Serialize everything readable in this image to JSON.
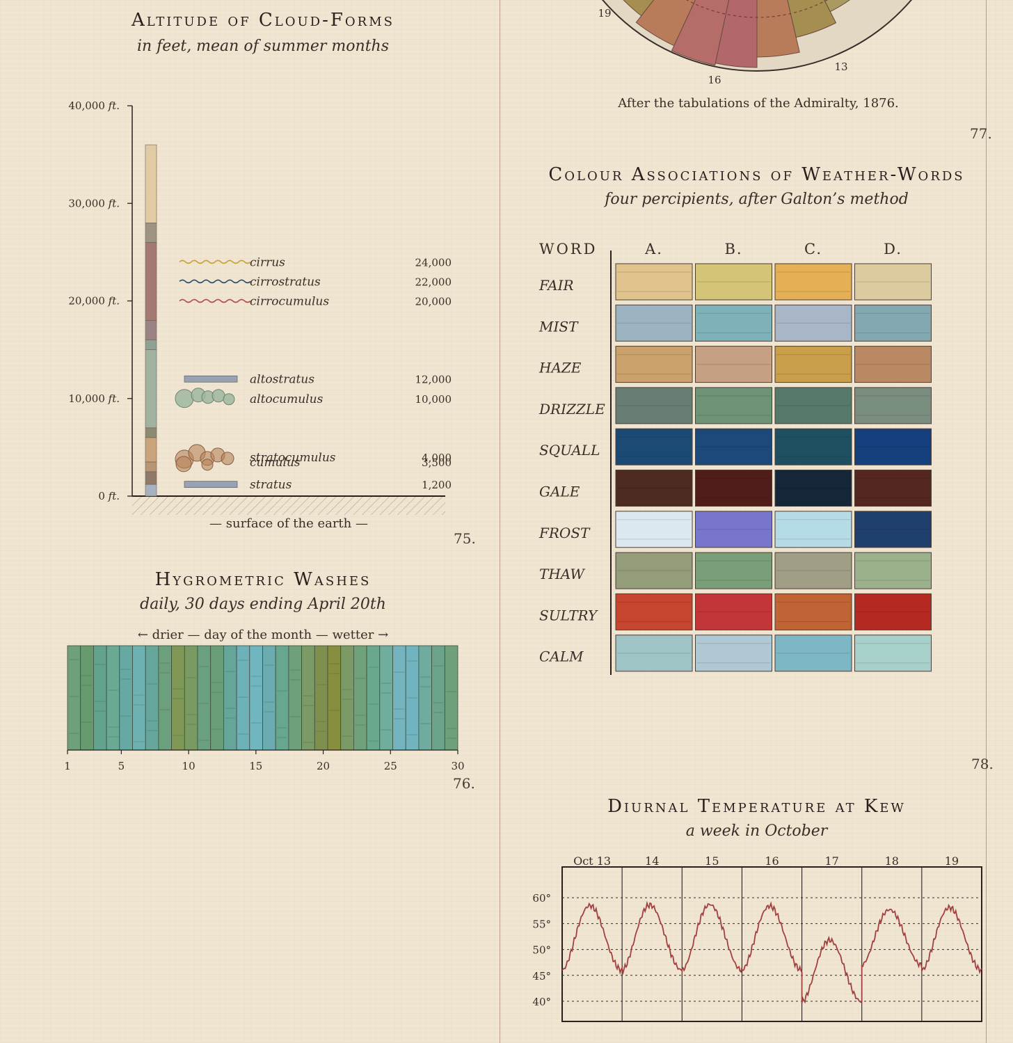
{
  "rose": {
    "spoke_labels": [
      "19",
      "16",
      "13"
    ],
    "caption": "After the tabulations of the Admiralty, 1876.",
    "page_number": "77."
  },
  "clouds": {
    "title": "Altitude of Cloud-Forms",
    "subtitle": "in feet, mean of summer months",
    "surface_label": "— surface of the earth —",
    "page_number": "75.",
    "chart_data": {
      "type": "bar",
      "ylabel_unit": "ft.",
      "ylim": [
        0,
        40000
      ],
      "yticks": [
        {
          "value": 0,
          "label": "0"
        },
        {
          "value": 10000,
          "label": "10,000"
        },
        {
          "value": 20000,
          "label": "20,000"
        },
        {
          "value": 30000,
          "label": "30,000"
        },
        {
          "value": 40000,
          "label": "40,000"
        }
      ],
      "column_segments": [
        {
          "from": 0,
          "to": 1200,
          "color": "#a7b2c0"
        },
        {
          "from": 1200,
          "to": 2500,
          "color": "#8f7a6a"
        },
        {
          "from": 2500,
          "to": 3500,
          "color": "#b89573"
        },
        {
          "from": 3500,
          "to": 6000,
          "color": "#c9a379"
        },
        {
          "from": 6000,
          "to": 7000,
          "color": "#8c8a6f"
        },
        {
          "from": 7000,
          "to": 15000,
          "color": "#a1b2a0"
        },
        {
          "from": 15000,
          "to": 16000,
          "color": "#8ea293"
        },
        {
          "from": 16000,
          "to": 18000,
          "color": "#9b8384"
        },
        {
          "from": 18000,
          "to": 26000,
          "color": "#a47873"
        },
        {
          "from": 26000,
          "to": 28000,
          "color": "#9e9483"
        },
        {
          "from": 28000,
          "to": 36000,
          "color": "#e0cba4"
        }
      ],
      "forms": [
        {
          "name": "cirrus",
          "value": 24000,
          "label": "24,000",
          "glyph": "wave",
          "color": "#c8a13a"
        },
        {
          "name": "cirrostratus",
          "value": 22000,
          "label": "22,000",
          "glyph": "wave",
          "color": "#2c4a66"
        },
        {
          "name": "cirrocumulus",
          "value": 20000,
          "label": "20,000",
          "glyph": "wave",
          "color": "#b1524f"
        },
        {
          "name": "altostratus",
          "value": 12000,
          "label": "12,000",
          "glyph": "bar",
          "color": "#98a2b0"
        },
        {
          "name": "altocumulus",
          "value": 10000,
          "label": "10,000",
          "glyph": "bubbles-green",
          "color": "#9fb7a0"
        },
        {
          "name": "stratocumulus",
          "value": 4000,
          "label": "4,000",
          "glyph": "bubbles-brown",
          "color": "#b8845a"
        },
        {
          "name": "cumulus",
          "value": 3500,
          "label": "3,500",
          "glyph": "none",
          "color": "#b8845a"
        },
        {
          "name": "stratus",
          "value": 1200,
          "label": "1,200",
          "glyph": "bar",
          "color": "#98a2b0"
        }
      ]
    }
  },
  "hygro": {
    "title": "Hygrometric Washes",
    "subtitle": "daily, 30 days ending April 20th",
    "axis_caption": "← drier — day of the month — wetter →",
    "page_number": "76.",
    "chart_data": {
      "type": "bar",
      "x": [
        1,
        2,
        3,
        4,
        5,
        6,
        7,
        8,
        9,
        10,
        11,
        12,
        13,
        14,
        15,
        16,
        17,
        18,
        19,
        20,
        21,
        22,
        23,
        24,
        25,
        26,
        27,
        28,
        29,
        30
      ],
      "wash_colors": [
        "#6fa07c",
        "#689a70",
        "#62a38f",
        "#6aa993",
        "#64aaa3",
        "#6db1b2",
        "#67a79b",
        "#6c9f7b",
        "#7f9855",
        "#7a9a63",
        "#69a180",
        "#6a9e79",
        "#66a69a",
        "#6fb1b9",
        "#6fb6c1",
        "#6bacb0",
        "#66a790",
        "#6fa07c",
        "#7c9a66",
        "#7f8f4e",
        "#878e3e",
        "#7c9a66",
        "#6fa27a",
        "#6aa88e",
        "#6fad9d",
        "#74b4bf",
        "#71b4c0",
        "#6fab9e",
        "#6ba38b",
        "#6ea07b"
      ],
      "xticks": [
        {
          "value": 1,
          "label": "1"
        },
        {
          "value": 5,
          "label": "5"
        },
        {
          "value": 10,
          "label": "10"
        },
        {
          "value": 15,
          "label": "15"
        },
        {
          "value": 20,
          "label": "20"
        },
        {
          "value": 25,
          "label": "25"
        },
        {
          "value": 30,
          "label": "30"
        }
      ]
    }
  },
  "colour": {
    "title": "Colour Associations of Weather-Words",
    "subtitle": "four percipients, after Galton’s method",
    "word_header": "WORD",
    "page_number": "78.",
    "chart_data": {
      "type": "table",
      "columns": [
        "A.",
        "B.",
        "C.",
        "D."
      ],
      "rows": [
        {
          "word": "FAIR",
          "colors": [
            "#e0c38d",
            "#d3c477",
            "#e5b055",
            "#ddcba0"
          ]
        },
        {
          "word": "MIST",
          "colors": [
            "#9cb4c2",
            "#7fb1b8",
            "#a9b6c8",
            "#82a9b2"
          ]
        },
        {
          "word": "HAZE",
          "colors": [
            "#cba26c",
            "#c6a082",
            "#c99f4c",
            "#b88962"
          ]
        },
        {
          "word": "DRIZZLE",
          "colors": [
            "#687e74",
            "#6e9376",
            "#557a6a",
            "#7a8e80"
          ]
        },
        {
          "word": "SQUALL",
          "colors": [
            "#1b4b75",
            "#1c487a",
            "#1e5062",
            "#153f7d"
          ]
        },
        {
          "word": "GALE",
          "colors": [
            "#4d2a22",
            "#511d1b",
            "#152639",
            "#542820"
          ]
        },
        {
          "word": "FROST",
          "colors": [
            "#dce8ef",
            "#7875cd",
            "#b5dce6",
            "#1f406d"
          ]
        },
        {
          "word": "THAW",
          "colors": [
            "#939d7a",
            "#7a9f78",
            "#a09f86",
            "#9bb18b"
          ]
        },
        {
          "word": "SULTRY",
          "colors": [
            "#c6452f",
            "#c23639",
            "#c06436",
            "#b42a22"
          ]
        },
        {
          "word": "CALM",
          "colors": [
            "#9fc4c6",
            "#afc8d4",
            "#7eb7c4",
            "#a8d0cb"
          ]
        }
      ]
    }
  },
  "diurnal": {
    "title": "Diurnal Temperature at Kew",
    "subtitle": "a week in October",
    "chart_data": {
      "type": "line",
      "days": [
        "Oct 13",
        "14",
        "15",
        "16",
        "17",
        "18",
        "19"
      ],
      "ylim": [
        38,
        63
      ],
      "yticks": [
        {
          "value": 40,
          "label": "40°"
        },
        {
          "value": 45,
          "label": "45°"
        },
        {
          "value": 50,
          "label": "50°"
        },
        {
          "value": 55,
          "label": "55°"
        },
        {
          "value": 60,
          "label": "60°"
        }
      ],
      "series": [
        {
          "daily_min": [
            46,
            46,
            46,
            46,
            39.9,
            47,
            46
          ],
          "daily_max": [
            58.5,
            58.6,
            58.7,
            58.4,
            51.8,
            57.7,
            58.1
          ],
          "color": "#a0413f"
        }
      ]
    }
  }
}
